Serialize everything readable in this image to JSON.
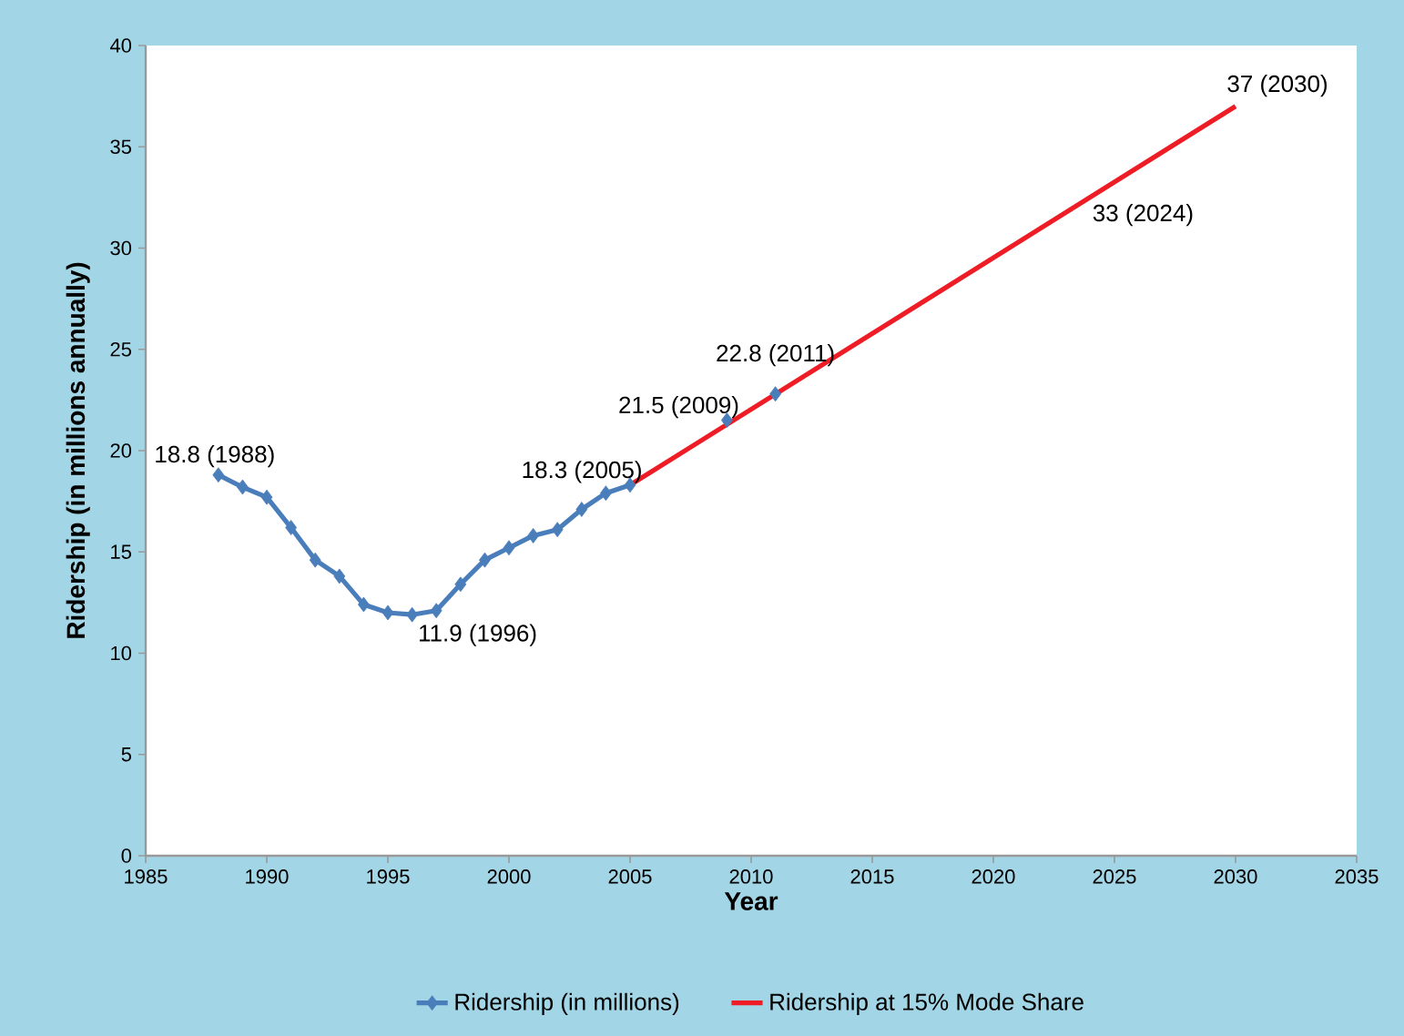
{
  "chart_data": {
    "type": "line",
    "xlabel": "Year",
    "ylabel": "Ridership (in millions annually)",
    "xlim": [
      1985,
      2035
    ],
    "xticks": [
      1985,
      1990,
      1995,
      2000,
      2005,
      2010,
      2015,
      2020,
      2025,
      2030,
      2035
    ],
    "ylim": [
      0,
      40
    ],
    "yticks": [
      0,
      5,
      10,
      15,
      20,
      25,
      30,
      35,
      40
    ],
    "series": [
      {
        "name": "Ridership (in millions)",
        "color": "#4a7ebb",
        "marker": "diamond",
        "x": [
          1988,
          1989,
          1990,
          1991,
          1992,
          1993,
          1994,
          1995,
          1996,
          1997,
          1998,
          1999,
          2000,
          2001,
          2002,
          2003,
          2004,
          2005,
          2006,
          2009,
          2010,
          2011
        ],
        "values": [
          18.8,
          18.2,
          17.7,
          16.2,
          14.6,
          13.8,
          12.4,
          12.0,
          11.9,
          12.1,
          13.4,
          14.6,
          15.2,
          15.8,
          16.1,
          17.1,
          17.9,
          18.3,
          null,
          21.5,
          null,
          22.8
        ]
      },
      {
        "name": "Ridership at 15% Mode Share",
        "color": "#ee1c25",
        "marker": "none",
        "x": [
          2005,
          2030
        ],
        "values": [
          18.3,
          37
        ]
      }
    ],
    "annotations": [
      {
        "text": "18.8 (1988)",
        "x": 1988,
        "y": 18.8
      },
      {
        "text": "11.9 (1996)",
        "x": 1996,
        "y": 11.9
      },
      {
        "text": "18.3 (2005)",
        "x": 2005,
        "y": 18.3
      },
      {
        "text": "21.5 (2009)",
        "x": 2009,
        "y": 21.5
      },
      {
        "text": "22.8 (2011)",
        "x": 2011,
        "y": 22.8
      },
      {
        "text": "33 (2024)",
        "x": 2024,
        "y": 33
      },
      {
        "text": "37 (2030)",
        "x": 2030,
        "y": 37
      }
    ],
    "legend": "bottom",
    "grid": false
  }
}
